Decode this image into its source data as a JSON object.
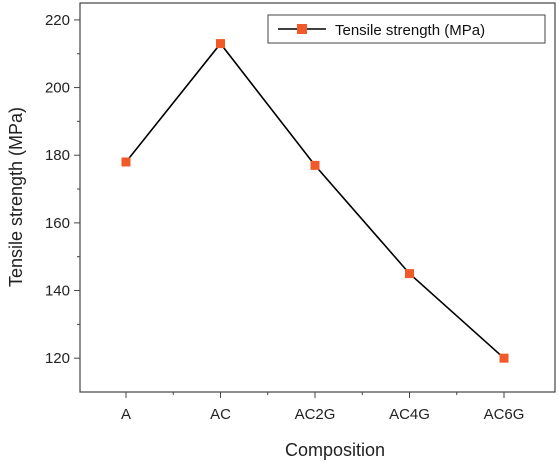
{
  "chart_data": {
    "type": "line",
    "categories": [
      "A",
      "AC",
      "AC2G",
      "AC4G",
      "AC6G"
    ],
    "series": [
      {
        "name": "Tensile strength (MPa)",
        "values": [
          178,
          213,
          177,
          145,
          120
        ]
      }
    ],
    "xlabel": "Composition",
    "ylabel": "Tensile strength (MPa)",
    "ylim": [
      110,
      225
    ],
    "yticks": [
      120,
      140,
      160,
      180,
      200,
      220
    ],
    "legend_position": "top-right",
    "grid": false,
    "colors": {
      "line": "#000000",
      "marker": "#f05a2a",
      "frame": "#444444"
    }
  }
}
